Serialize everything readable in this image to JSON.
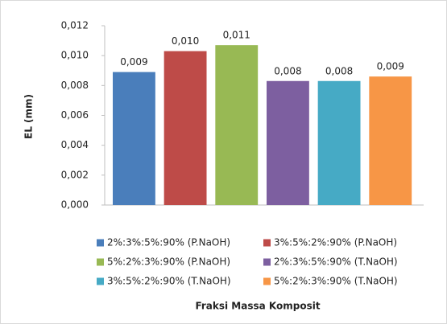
{
  "chart_data": {
    "type": "bar",
    "y_label": "EL (mm)",
    "x_label": "Fraksi Massa Komposit",
    "categories": [
      null
    ],
    "series": [
      {
        "name": "2%:3%:5%:90% (P.NaOH)",
        "color": "#4a7ebb",
        "values": [
          0.0089
        ],
        "value_labels": [
          "0,009"
        ]
      },
      {
        "name": "3%:5%:2%:90% (P.NaOH)",
        "color": "#be4b48",
        "values": [
          0.0103
        ],
        "value_labels": [
          "0,010"
        ]
      },
      {
        "name": "5%:2%:3%:90% (P.NaOH)",
        "color": "#98b954",
        "values": [
          0.0107
        ],
        "value_labels": [
          "0,011"
        ]
      },
      {
        "name": "2%:3%:5%:90% (T.NaOH)",
        "color": "#7d5fa0",
        "values": [
          0.0083
        ],
        "value_labels": [
          "0,008"
        ]
      },
      {
        "name": "3%:5%:2%:90% (T.NaOH)",
        "color": "#46aac5",
        "values": [
          0.0083
        ],
        "value_labels": [
          "0,008"
        ]
      },
      {
        "name": "5%:2%:3%:90% (T.NaOH)",
        "color": "#f79646",
        "values": [
          0.0086
        ],
        "value_labels": [
          "0,009"
        ]
      }
    ],
    "ylim": [
      0,
      0.012
    ],
    "yticks": [
      {
        "value": 0,
        "label": "0,000"
      },
      {
        "value": 0.002,
        "label": "0,002"
      },
      {
        "value": 0.004,
        "label": "0,004"
      },
      {
        "value": 0.006,
        "label": "0,006"
      },
      {
        "value": 0.008,
        "label": "0,008"
      },
      {
        "value": 0.01,
        "label": "0,010"
      },
      {
        "value": 0.012,
        "label": "0,012"
      }
    ],
    "grid": false,
    "legend": "bottom"
  }
}
